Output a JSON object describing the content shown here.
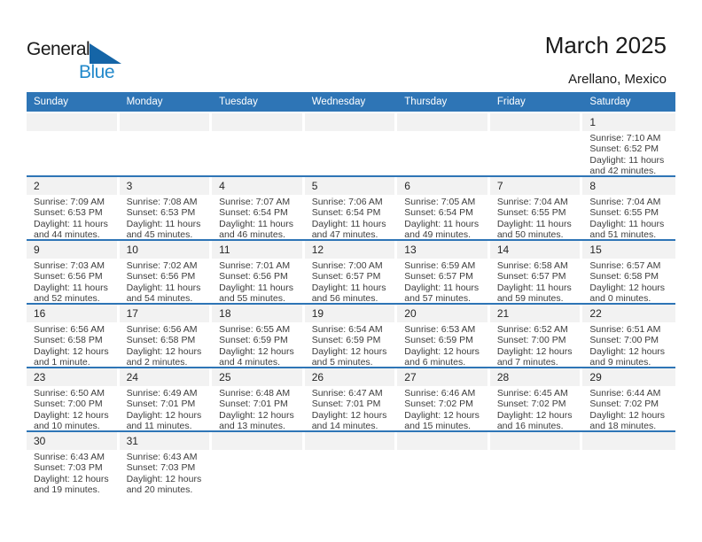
{
  "logo": {
    "part1": "General",
    "part2": "Blue",
    "triangle_icon": "lower-left-triangle"
  },
  "header": {
    "title": "March 2025",
    "subtitle": "Arellano, Mexico"
  },
  "colors": {
    "header_bar_blue": "#2e75b6",
    "week_separator_blue": "#2e75b6",
    "day_strip_gray": "#f2f2f2",
    "logo_text_blue": "#2289cb",
    "logo_triangle_blue": "#1565a7",
    "text_dark": "#3d3d3d"
  },
  "weekdays": [
    "Sunday",
    "Monday",
    "Tuesday",
    "Wednesday",
    "Thursday",
    "Friday",
    "Saturday"
  ],
  "weeks": [
    [
      null,
      null,
      null,
      null,
      null,
      null,
      {
        "day": "1",
        "lines": [
          "Sunrise: 7:10 AM",
          "Sunset: 6:52 PM",
          "Daylight: 11 hours",
          "and 42 minutes."
        ]
      }
    ],
    [
      {
        "day": "2",
        "lines": [
          "Sunrise: 7:09 AM",
          "Sunset: 6:53 PM",
          "Daylight: 11 hours",
          "and 44 minutes."
        ]
      },
      {
        "day": "3",
        "lines": [
          "Sunrise: 7:08 AM",
          "Sunset: 6:53 PM",
          "Daylight: 11 hours",
          "and 45 minutes."
        ]
      },
      {
        "day": "4",
        "lines": [
          "Sunrise: 7:07 AM",
          "Sunset: 6:54 PM",
          "Daylight: 11 hours",
          "and 46 minutes."
        ]
      },
      {
        "day": "5",
        "lines": [
          "Sunrise: 7:06 AM",
          "Sunset: 6:54 PM",
          "Daylight: 11 hours",
          "and 47 minutes."
        ]
      },
      {
        "day": "6",
        "lines": [
          "Sunrise: 7:05 AM",
          "Sunset: 6:54 PM",
          "Daylight: 11 hours",
          "and 49 minutes."
        ]
      },
      {
        "day": "7",
        "lines": [
          "Sunrise: 7:04 AM",
          "Sunset: 6:55 PM",
          "Daylight: 11 hours",
          "and 50 minutes."
        ]
      },
      {
        "day": "8",
        "lines": [
          "Sunrise: 7:04 AM",
          "Sunset: 6:55 PM",
          "Daylight: 11 hours",
          "and 51 minutes."
        ]
      }
    ],
    [
      {
        "day": "9",
        "lines": [
          "Sunrise: 7:03 AM",
          "Sunset: 6:56 PM",
          "Daylight: 11 hours",
          "and 52 minutes."
        ]
      },
      {
        "day": "10",
        "lines": [
          "Sunrise: 7:02 AM",
          "Sunset: 6:56 PM",
          "Daylight: 11 hours",
          "and 54 minutes."
        ]
      },
      {
        "day": "11",
        "lines": [
          "Sunrise: 7:01 AM",
          "Sunset: 6:56 PM",
          "Daylight: 11 hours",
          "and 55 minutes."
        ]
      },
      {
        "day": "12",
        "lines": [
          "Sunrise: 7:00 AM",
          "Sunset: 6:57 PM",
          "Daylight: 11 hours",
          "and 56 minutes."
        ]
      },
      {
        "day": "13",
        "lines": [
          "Sunrise: 6:59 AM",
          "Sunset: 6:57 PM",
          "Daylight: 11 hours",
          "and 57 minutes."
        ]
      },
      {
        "day": "14",
        "lines": [
          "Sunrise: 6:58 AM",
          "Sunset: 6:57 PM",
          "Daylight: 11 hours",
          "and 59 minutes."
        ]
      },
      {
        "day": "15",
        "lines": [
          "Sunrise: 6:57 AM",
          "Sunset: 6:58 PM",
          "Daylight: 12 hours",
          "and 0 minutes."
        ]
      }
    ],
    [
      {
        "day": "16",
        "lines": [
          "Sunrise: 6:56 AM",
          "Sunset: 6:58 PM",
          "Daylight: 12 hours",
          "and 1 minute."
        ]
      },
      {
        "day": "17",
        "lines": [
          "Sunrise: 6:56 AM",
          "Sunset: 6:58 PM",
          "Daylight: 12 hours",
          "and 2 minutes."
        ]
      },
      {
        "day": "18",
        "lines": [
          "Sunrise: 6:55 AM",
          "Sunset: 6:59 PM",
          "Daylight: 12 hours",
          "and 4 minutes."
        ]
      },
      {
        "day": "19",
        "lines": [
          "Sunrise: 6:54 AM",
          "Sunset: 6:59 PM",
          "Daylight: 12 hours",
          "and 5 minutes."
        ]
      },
      {
        "day": "20",
        "lines": [
          "Sunrise: 6:53 AM",
          "Sunset: 6:59 PM",
          "Daylight: 12 hours",
          "and 6 minutes."
        ]
      },
      {
        "day": "21",
        "lines": [
          "Sunrise: 6:52 AM",
          "Sunset: 7:00 PM",
          "Daylight: 12 hours",
          "and 7 minutes."
        ]
      },
      {
        "day": "22",
        "lines": [
          "Sunrise: 6:51 AM",
          "Sunset: 7:00 PM",
          "Daylight: 12 hours",
          "and 9 minutes."
        ]
      }
    ],
    [
      {
        "day": "23",
        "lines": [
          "Sunrise: 6:50 AM",
          "Sunset: 7:00 PM",
          "Daylight: 12 hours",
          "and 10 minutes."
        ]
      },
      {
        "day": "24",
        "lines": [
          "Sunrise: 6:49 AM",
          "Sunset: 7:01 PM",
          "Daylight: 12 hours",
          "and 11 minutes."
        ]
      },
      {
        "day": "25",
        "lines": [
          "Sunrise: 6:48 AM",
          "Sunset: 7:01 PM",
          "Daylight: 12 hours",
          "and 13 minutes."
        ]
      },
      {
        "day": "26",
        "lines": [
          "Sunrise: 6:47 AM",
          "Sunset: 7:01 PM",
          "Daylight: 12 hours",
          "and 14 minutes."
        ]
      },
      {
        "day": "27",
        "lines": [
          "Sunrise: 6:46 AM",
          "Sunset: 7:02 PM",
          "Daylight: 12 hours",
          "and 15 minutes."
        ]
      },
      {
        "day": "28",
        "lines": [
          "Sunrise: 6:45 AM",
          "Sunset: 7:02 PM",
          "Daylight: 12 hours",
          "and 16 minutes."
        ]
      },
      {
        "day": "29",
        "lines": [
          "Sunrise: 6:44 AM",
          "Sunset: 7:02 PM",
          "Daylight: 12 hours",
          "and 18 minutes."
        ]
      }
    ],
    [
      {
        "day": "30",
        "lines": [
          "Sunrise: 6:43 AM",
          "Sunset: 7:03 PM",
          "Daylight: 12 hours",
          "and 19 minutes."
        ]
      },
      {
        "day": "31",
        "lines": [
          "Sunrise: 6:43 AM",
          "Sunset: 7:03 PM",
          "Daylight: 12 hours",
          "and 20 minutes."
        ]
      },
      null,
      null,
      null,
      null,
      null
    ]
  ]
}
